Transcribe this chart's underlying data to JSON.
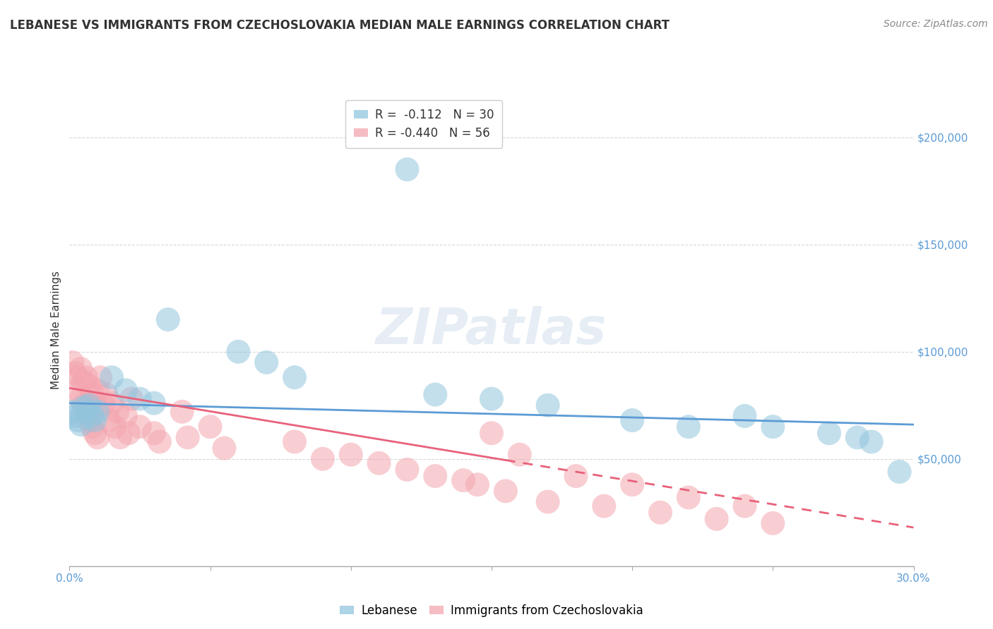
{
  "title": "LEBANESE VS IMMIGRANTS FROM CZECHOSLOVAKIA MEDIAN MALE EARNINGS CORRELATION CHART",
  "source": "Source: ZipAtlas.com",
  "ylabel": "Median Male Earnings",
  "xlim": [
    0.0,
    0.3
  ],
  "ylim": [
    0,
    220000
  ],
  "yticks": [
    0,
    50000,
    100000,
    150000,
    200000
  ],
  "ytick_labels": [
    "",
    "$50,000",
    "$100,000",
    "$150,000",
    "$200,000"
  ],
  "background_color": "#ffffff",
  "grid_color": "#d8d8d8",
  "blue_color": "#92c5de",
  "pink_color": "#f4a6b0",
  "blue_line_color": "#5b9bd5",
  "pink_line_color": "#e8617a",
  "watermark": "ZIPatlas",
  "lebanese_points": [
    [
      0.001,
      72000
    ],
    [
      0.002,
      70000
    ],
    [
      0.003,
      68000
    ],
    [
      0.004,
      66000
    ],
    [
      0.005,
      74000
    ],
    [
      0.006,
      72000
    ],
    [
      0.007,
      75000
    ],
    [
      0.008,
      70000
    ],
    [
      0.009,
      68000
    ],
    [
      0.01,
      72000
    ],
    [
      0.015,
      88000
    ],
    [
      0.02,
      82000
    ],
    [
      0.025,
      78000
    ],
    [
      0.03,
      76000
    ],
    [
      0.035,
      115000
    ],
    [
      0.06,
      100000
    ],
    [
      0.07,
      95000
    ],
    [
      0.08,
      88000
    ],
    [
      0.12,
      185000
    ],
    [
      0.13,
      80000
    ],
    [
      0.15,
      78000
    ],
    [
      0.17,
      75000
    ],
    [
      0.2,
      68000
    ],
    [
      0.22,
      65000
    ],
    [
      0.24,
      70000
    ],
    [
      0.25,
      65000
    ],
    [
      0.27,
      62000
    ],
    [
      0.28,
      60000
    ],
    [
      0.285,
      58000
    ],
    [
      0.295,
      44000
    ]
  ],
  "czechoslovakia_points": [
    [
      0.001,
      95000
    ],
    [
      0.002,
      90000
    ],
    [
      0.003,
      88000
    ],
    [
      0.003,
      82000
    ],
    [
      0.004,
      92000
    ],
    [
      0.004,
      78000
    ],
    [
      0.005,
      86000
    ],
    [
      0.005,
      75000
    ],
    [
      0.006,
      88000
    ],
    [
      0.006,
      72000
    ],
    [
      0.007,
      84000
    ],
    [
      0.007,
      68000
    ],
    [
      0.008,
      80000
    ],
    [
      0.008,
      65000
    ],
    [
      0.009,
      76000
    ],
    [
      0.009,
      62000
    ],
    [
      0.01,
      82000
    ],
    [
      0.01,
      60000
    ],
    [
      0.011,
      88000
    ],
    [
      0.012,
      75000
    ],
    [
      0.013,
      80000
    ],
    [
      0.014,
      68000
    ],
    [
      0.015,
      76000
    ],
    [
      0.016,
      65000
    ],
    [
      0.017,
      72000
    ],
    [
      0.018,
      60000
    ],
    [
      0.02,
      70000
    ],
    [
      0.021,
      62000
    ],
    [
      0.022,
      78000
    ],
    [
      0.025,
      65000
    ],
    [
      0.03,
      62000
    ],
    [
      0.032,
      58000
    ],
    [
      0.04,
      72000
    ],
    [
      0.042,
      60000
    ],
    [
      0.05,
      65000
    ],
    [
      0.055,
      55000
    ],
    [
      0.08,
      58000
    ],
    [
      0.09,
      50000
    ],
    [
      0.1,
      52000
    ],
    [
      0.11,
      48000
    ],
    [
      0.12,
      45000
    ],
    [
      0.13,
      42000
    ],
    [
      0.14,
      40000
    ],
    [
      0.145,
      38000
    ],
    [
      0.15,
      62000
    ],
    [
      0.155,
      35000
    ],
    [
      0.16,
      52000
    ],
    [
      0.17,
      30000
    ],
    [
      0.18,
      42000
    ],
    [
      0.19,
      28000
    ],
    [
      0.2,
      38000
    ],
    [
      0.21,
      25000
    ],
    [
      0.22,
      32000
    ],
    [
      0.23,
      22000
    ],
    [
      0.24,
      28000
    ],
    [
      0.25,
      20000
    ]
  ]
}
